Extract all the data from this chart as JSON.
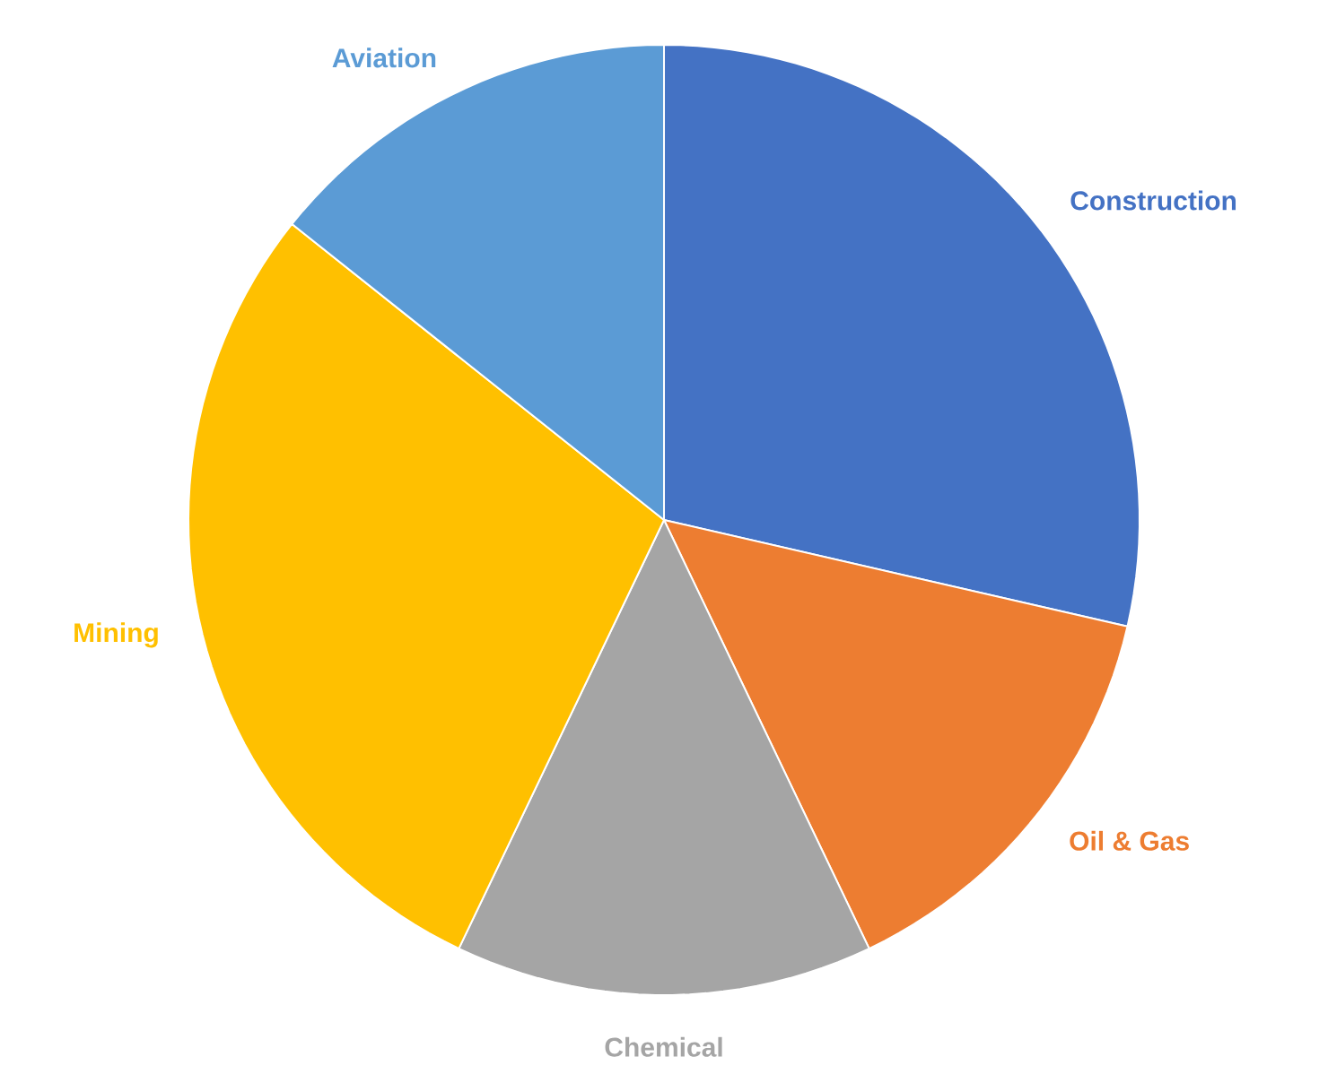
{
  "chart_data": {
    "type": "pie",
    "categories": [
      "Construction",
      "Oil & Gas",
      "Chemical",
      "Mining",
      "Aviation"
    ],
    "values": [
      28.6,
      14.3,
      14.2,
      28.6,
      14.3
    ],
    "colors": [
      "#4472c4",
      "#ed7d31",
      "#a5a5a5",
      "#ffc000",
      "#5b9bd5"
    ]
  }
}
